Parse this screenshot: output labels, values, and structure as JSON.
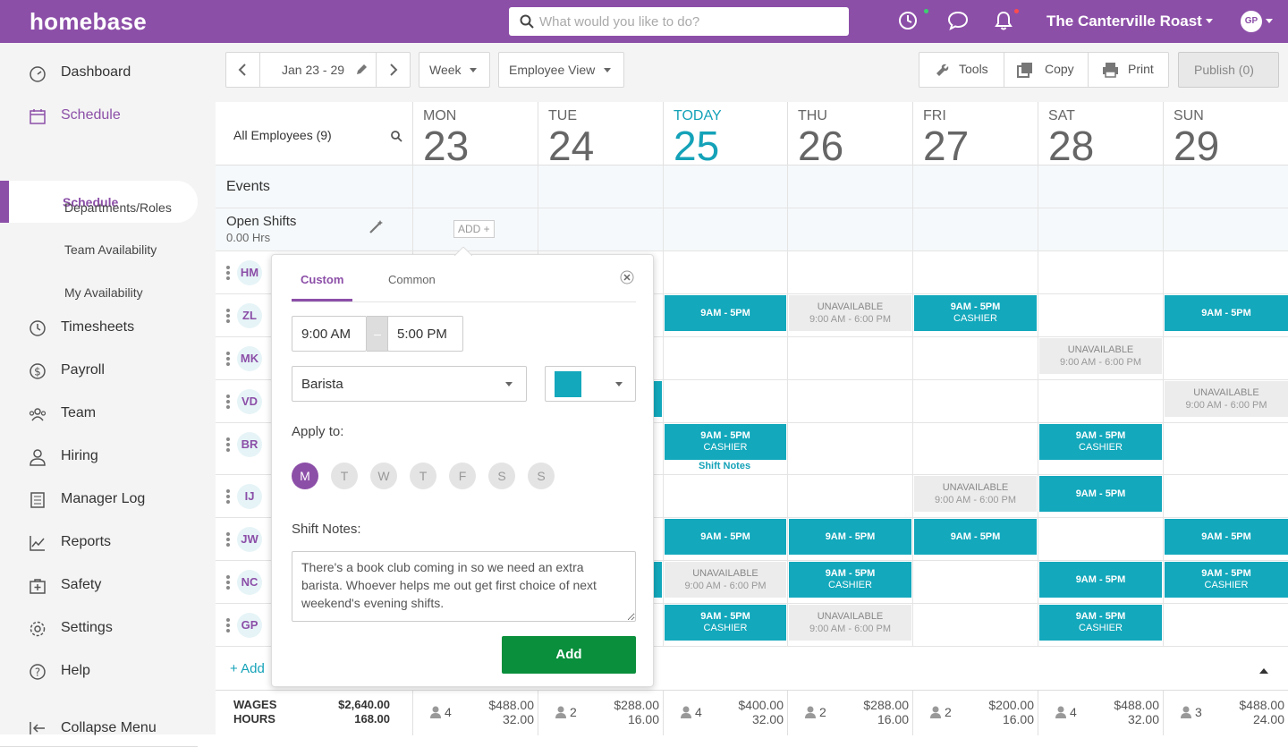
{
  "brand": {
    "name": "homebase",
    "accent": "#8c4fa8",
    "teal": "#13a8bc",
    "green": "#0a8f3c"
  },
  "search": {
    "placeholder": "What would you like to do?"
  },
  "header": {
    "company": "The Canterville Roast",
    "user_initials": "GP"
  },
  "sidebar": {
    "items": [
      {
        "label": "Dashboard",
        "icon": "dashboard-icon"
      },
      {
        "label": "Schedule",
        "icon": "calendar-icon",
        "active": true
      },
      {
        "label": "Timesheets",
        "icon": "clock-icon"
      },
      {
        "label": "Payroll",
        "icon": "dollar-icon"
      },
      {
        "label": "Team",
        "icon": "team-icon"
      },
      {
        "label": "Hiring",
        "icon": "person-icon"
      },
      {
        "label": "Manager Log",
        "icon": "log-icon"
      },
      {
        "label": "Reports",
        "icon": "reports-icon"
      },
      {
        "label": "Safety",
        "icon": "safety-icon"
      },
      {
        "label": "Settings",
        "icon": "gear-icon"
      },
      {
        "label": "Help",
        "icon": "help-icon"
      }
    ],
    "subitems": [
      "Schedule",
      "Departments/Roles",
      "Team Availability",
      "My Availability"
    ],
    "collapse": "Collapse Menu"
  },
  "toolbar": {
    "date_range": "Jan 23 - 29",
    "view_period": "Week",
    "view_mode": "Employee View",
    "tools": "Tools",
    "copy": "Copy",
    "print": "Print",
    "publish": "Publish (0)"
  },
  "grid": {
    "all_employees": "All Employees (9)",
    "events": "Events",
    "open_shifts": "Open Shifts",
    "open_hours": "0.00 Hrs",
    "add_btn": "ADD +",
    "add_employee": "+ Add",
    "days": [
      {
        "name": "MON",
        "num": "23"
      },
      {
        "name": "TUE",
        "num": "24"
      },
      {
        "name": "TODAY",
        "num": "25",
        "today": true
      },
      {
        "name": "THU",
        "num": "26"
      },
      {
        "name": "FRI",
        "num": "27"
      },
      {
        "name": "SAT",
        "num": "28"
      },
      {
        "name": "SUN",
        "num": "29"
      }
    ],
    "employees": [
      "HM",
      "ZL",
      "MK",
      "VD",
      "BR",
      "IJ",
      "JW",
      "NC",
      "GP"
    ],
    "shift_time": "9AM - 5PM",
    "cashier": "CASHIER",
    "unavailable": "UNAVAILABLE",
    "unavail_time": "9:00 AM - 6:00 PM",
    "shift_notes": "Shift Notes"
  },
  "footer": {
    "wages_label": "WAGES",
    "hours_label": "HOURS",
    "total_wages": "$2,640.00",
    "total_hours": "168.00",
    "days": [
      {
        "count": "4",
        "wages": "$488.00",
        "hours": "32.00"
      },
      {
        "count": "2",
        "wages": "$288.00",
        "hours": "16.00"
      },
      {
        "count": "4",
        "wages": "$400.00",
        "hours": "32.00"
      },
      {
        "count": "2",
        "wages": "$288.00",
        "hours": "16.00"
      },
      {
        "count": "2",
        "wages": "$200.00",
        "hours": "16.00"
      },
      {
        "count": "4",
        "wages": "$488.00",
        "hours": "32.00"
      },
      {
        "count": "3",
        "wages": "$488.00",
        "hours": "24.00"
      }
    ]
  },
  "popup": {
    "tab_custom": "Custom",
    "tab_common": "Common",
    "start": "9:00 AM",
    "end": "5:00 PM",
    "role": "Barista",
    "color": "#13a8bc",
    "apply_to": "Apply to:",
    "days": [
      "M",
      "T",
      "W",
      "T",
      "F",
      "S",
      "S"
    ],
    "notes_label": "Shift Notes:",
    "notes": "There's a book club coming in so we need an extra barista. Whoever helps me out get first choice of next weekend's evening shifts.",
    "add": "Add"
  }
}
